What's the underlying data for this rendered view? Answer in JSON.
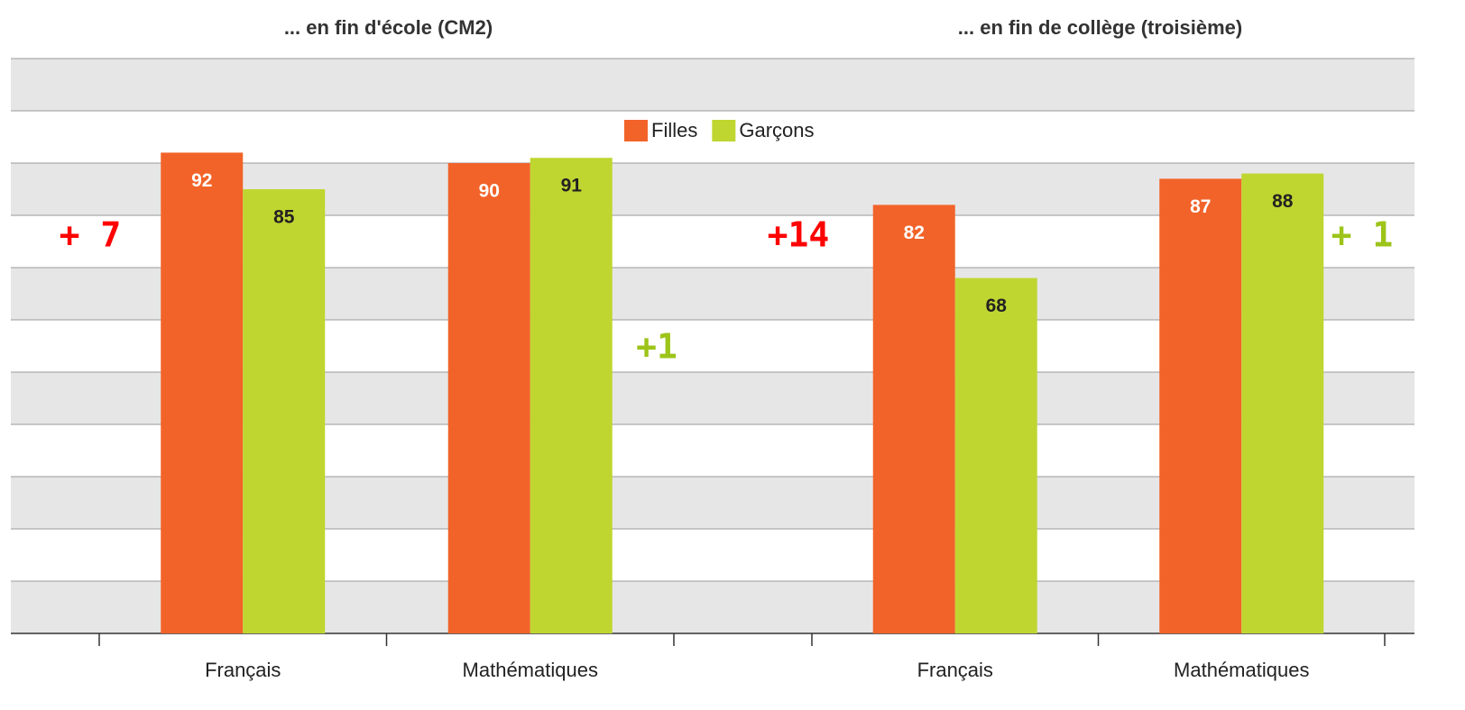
{
  "chart_data": {
    "type": "bar",
    "groups": [
      {
        "title": "... en fin d'école (CM2)"
      },
      {
        "title": "... en fin de collège (troisième)"
      }
    ],
    "categories": [
      "Français",
      "Mathématiques",
      "Français",
      "Mathématiques"
    ],
    "series": [
      {
        "name": "Filles",
        "color": "#f26329",
        "label_color": "#ffffff",
        "values": [
          92,
          90,
          82,
          87
        ]
      },
      {
        "name": "Garçons",
        "color": "#bfd630",
        "label_color": "#222222",
        "values": [
          85,
          91,
          68,
          88
        ]
      }
    ],
    "annotations": [
      {
        "text": "+ 7",
        "color": "#ff0000"
      },
      {
        "text": "+1",
        "color": "#9dc41a"
      },
      {
        "text": "+14",
        "color": "#ff0000"
      },
      {
        "text": "+ 1",
        "color": "#9dc41a"
      }
    ],
    "ylim": [
      0,
      110
    ],
    "yticks": [
      0,
      10,
      20,
      30,
      40,
      50,
      60,
      70,
      80,
      90,
      100,
      110
    ],
    "grid": true
  }
}
